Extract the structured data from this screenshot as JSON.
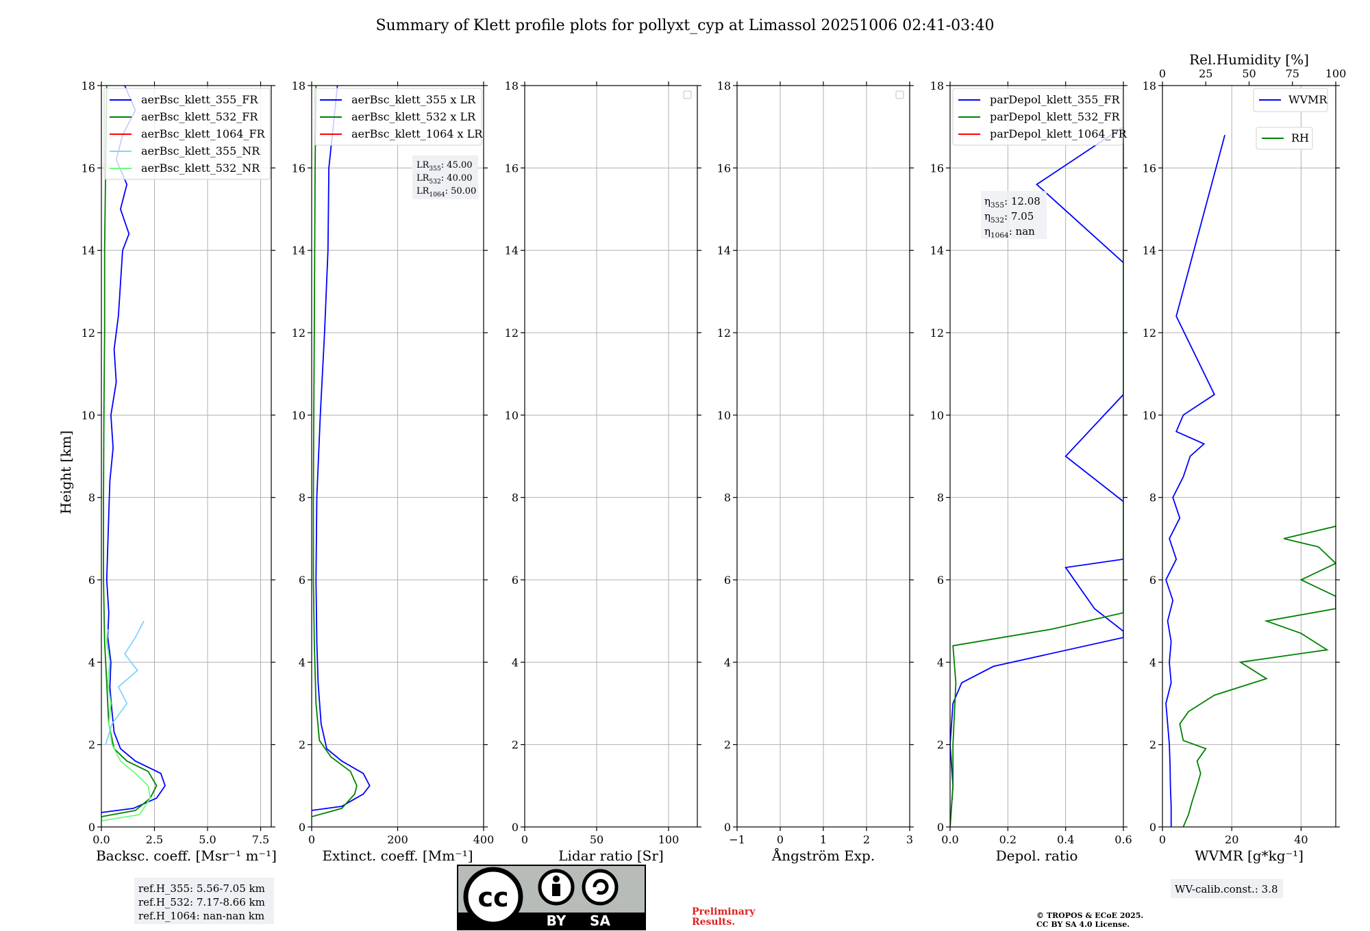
{
  "figure": {
    "title": "Summary of Klett profile plots for pollyxt_cyp at Limassol 20251006 02:41-03:40",
    "y_label": "Height [km]",
    "ref_heights": [
      "ref.H_355: 5.56-7.05 km",
      "ref.H_532: 7.17-8.66 km",
      "ref.H_1064: nan-nan km"
    ],
    "license_badge": {
      "by": "BY",
      "sa": "SA",
      "cc": "cc"
    },
    "preliminary": [
      "Preliminary",
      "Results."
    ],
    "copyright": [
      "© TROPOS & ECoE 2025.",
      "CC BY SA 4.0 License."
    ],
    "wv_calib": "WV-calib.const.: 3.8",
    "colors": {
      "blue": "#0000ff",
      "green": "#008000",
      "red": "#ff0000",
      "lightblue": "#7fd4ff",
      "lightgreen": "#6dfb7a",
      "grid": "#b0b0b0",
      "boxbg": "#eef0f4"
    }
  },
  "chart_data": [
    {
      "type": "line",
      "id": "backscatter",
      "xlabel": "Backsc. coeff. [Msr⁻¹ m⁻¹]",
      "xlim": [
        0,
        8
      ],
      "xticks": [
        "0.0",
        "2.5",
        "5.0",
        "7.5"
      ],
      "xtick_values": [
        0,
        2.5,
        5.0,
        7.5
      ],
      "ylim": [
        0,
        18
      ],
      "yticks": [
        "0",
        "2",
        "4",
        "6",
        "8",
        "10",
        "12",
        "14",
        "16",
        "18"
      ],
      "legend": [
        "aerBsc_klett_355_FR",
        "aerBsc_klett_532_FR",
        "aerBsc_klett_1064_FR",
        "aerBsc_klett_355_NR",
        "aerBsc_klett_532_NR"
      ],
      "series": [
        {
          "name": "aerBsc_klett_355_FR",
          "color": "blue",
          "points": [
            [
              0.0,
              0.35
            ],
            [
              1.5,
              0.45
            ],
            [
              2.6,
              0.7
            ],
            [
              3.0,
              1.0
            ],
            [
              2.8,
              1.3
            ],
            [
              1.6,
              1.6
            ],
            [
              0.9,
              1.9
            ],
            [
              0.6,
              2.3
            ],
            [
              0.5,
              2.8
            ],
            [
              0.4,
              3.4
            ],
            [
              0.45,
              4.0
            ],
            [
              0.3,
              4.6
            ],
            [
              0.35,
              5.2
            ],
            [
              0.25,
              6.0
            ],
            [
              0.3,
              6.8
            ],
            [
              0.35,
              7.6
            ],
            [
              0.4,
              8.4
            ],
            [
              0.55,
              9.2
            ],
            [
              0.45,
              10.0
            ],
            [
              0.7,
              10.8
            ],
            [
              0.6,
              11.6
            ],
            [
              0.8,
              12.4
            ],
            [
              0.9,
              13.2
            ],
            [
              1.0,
              14.0
            ],
            [
              1.3,
              14.4
            ],
            [
              0.9,
              15.0
            ],
            [
              1.2,
              15.6
            ],
            [
              0.7,
              16.2
            ],
            [
              1.0,
              16.8
            ],
            [
              1.6,
              17.4
            ],
            [
              1.1,
              18.0
            ]
          ]
        },
        {
          "name": "aerBsc_klett_532_FR",
          "color": "green",
          "points": [
            [
              0.0,
              0.25
            ],
            [
              1.6,
              0.4
            ],
            [
              2.3,
              0.7
            ],
            [
              2.6,
              1.0
            ],
            [
              2.2,
              1.35
            ],
            [
              1.2,
              1.6
            ],
            [
              0.6,
              1.9
            ],
            [
              0.35,
              2.5
            ],
            [
              0.25,
              3.5
            ],
            [
              0.15,
              4.5
            ],
            [
              0.1,
              6.0
            ],
            [
              0.1,
              8.0
            ],
            [
              0.12,
              10.0
            ],
            [
              0.15,
              12.0
            ],
            [
              0.15,
              14.0
            ],
            [
              0.2,
              16.0
            ],
            [
              0.25,
              18.0
            ]
          ]
        },
        {
          "name": "aerBsc_klett_355_NR",
          "color": "lightblue",
          "points": [
            [
              0.2,
              2.0
            ],
            [
              0.5,
              2.5
            ],
            [
              1.2,
              3.0
            ],
            [
              0.8,
              3.4
            ],
            [
              1.7,
              3.8
            ],
            [
              1.1,
              4.2
            ],
            [
              1.6,
              4.6
            ],
            [
              2.0,
              5.0
            ]
          ]
        },
        {
          "name": "aerBsc_klett_532_NR",
          "color": "lightgreen",
          "points": [
            [
              0.0,
              0.15
            ],
            [
              1.8,
              0.3
            ],
            [
              2.3,
              0.7
            ],
            [
              2.2,
              1.0
            ],
            [
              1.6,
              1.3
            ],
            [
              0.9,
              1.6
            ],
            [
              0.5,
              2.0
            ],
            [
              0.35,
              2.5
            ],
            [
              0.45,
              3.0
            ],
            [
              0.3,
              3.5
            ],
            [
              0.4,
              4.0
            ],
            [
              0.25,
              4.5
            ],
            [
              0.3,
              4.8
            ]
          ]
        }
      ]
    },
    {
      "type": "line",
      "id": "extinction",
      "xlabel": "Extinct. coeff. [Mm⁻¹]",
      "xlim": [
        0,
        400
      ],
      "xticks": [
        "0",
        "200",
        "400"
      ],
      "xtick_values": [
        0,
        200,
        400
      ],
      "ylim": [
        0,
        18
      ],
      "yticks": [
        "0",
        "2",
        "4",
        "6",
        "8",
        "10",
        "12",
        "14",
        "16",
        "18"
      ],
      "legend": [
        "aerBsc_klett_355 x LR",
        "aerBsc_klett_532 x LR",
        "aerBsc_klett_1064 x LR"
      ],
      "lr_box": [
        "LR355: 45.00",
        "LR532: 40.00",
        "LR1064: 50.00"
      ],
      "series": [
        {
          "name": "aerBsc_klett_355 x LR",
          "color": "blue",
          "points": [
            [
              0,
              0.4
            ],
            [
              70,
              0.5
            ],
            [
              120,
              0.8
            ],
            [
              135,
              1.0
            ],
            [
              120,
              1.3
            ],
            [
              70,
              1.6
            ],
            [
              35,
              1.9
            ],
            [
              22,
              2.5
            ],
            [
              15,
              3.5
            ],
            [
              12,
              4.5
            ],
            [
              10,
              6.0
            ],
            [
              12,
              8.0
            ],
            [
              20,
              10.0
            ],
            [
              30,
              12.0
            ],
            [
              38,
              14.0
            ],
            [
              40,
              16.0
            ],
            [
              50,
              17.0
            ],
            [
              60,
              18.0
            ]
          ]
        },
        {
          "name": "aerBsc_klett_532 x LR",
          "color": "green",
          "points": [
            [
              0,
              0.25
            ],
            [
              70,
              0.45
            ],
            [
              100,
              0.8
            ],
            [
              105,
              1.0
            ],
            [
              90,
              1.35
            ],
            [
              45,
              1.7
            ],
            [
              18,
              2.1
            ],
            [
              10,
              3.0
            ],
            [
              6,
              4.5
            ],
            [
              4,
              6.0
            ],
            [
              4,
              8.0
            ],
            [
              5,
              10.0
            ],
            [
              6,
              12.0
            ],
            [
              7,
              14.0
            ],
            [
              8,
              16.0
            ],
            [
              10,
              18.0
            ]
          ]
        }
      ]
    },
    {
      "type": "line",
      "id": "lidar_ratio",
      "xlabel": "Lidar ratio [Sr]",
      "xlim": [
        0,
        120
      ],
      "xticks": [
        "0",
        "50",
        "100"
      ],
      "xtick_values": [
        0,
        50,
        100
      ],
      "ylim": [
        0,
        18
      ],
      "yticks": [
        "0",
        "2",
        "4",
        "6",
        "8",
        "10",
        "12",
        "14",
        "16",
        "18"
      ],
      "series": []
    },
    {
      "type": "line",
      "id": "angstrom",
      "xlabel": "Ångström Exp.",
      "xlim": [
        -1,
        3
      ],
      "xticks": [
        "−1",
        "0",
        "1",
        "2",
        "3"
      ],
      "xtick_values": [
        -1,
        0,
        1,
        2,
        3
      ],
      "ylim": [
        0,
        18
      ],
      "yticks": [
        "0",
        "2",
        "4",
        "6",
        "8",
        "10",
        "12",
        "14",
        "16",
        "18"
      ],
      "series": []
    },
    {
      "type": "line",
      "id": "depol",
      "xlabel": "Depol. ratio",
      "xlim": [
        0,
        0.6
      ],
      "xticks": [
        "0.0",
        "0.2",
        "0.4",
        "0.6"
      ],
      "xtick_values": [
        0,
        0.2,
        0.4,
        0.6
      ],
      "ylim": [
        0,
        18
      ],
      "yticks": [
        "0",
        "2",
        "4",
        "6",
        "8",
        "10",
        "12",
        "14",
        "16",
        "18"
      ],
      "legend": [
        "parDepol_klett_355_FR",
        "parDepol_klett_532_FR",
        "parDepol_klett_1064_FR"
      ],
      "eta_box": [
        "η355: 12.08",
        "η532: 7.05",
        "η1064: nan"
      ],
      "series": [
        {
          "name": "parDepol_klett_355_FR",
          "color": "blue",
          "points": [
            [
              0.0,
              0.0
            ],
            [
              0.01,
              1.0
            ],
            [
              0.0,
              2.0
            ],
            [
              0.01,
              3.0
            ],
            [
              0.04,
              3.5
            ],
            [
              0.15,
              3.9
            ],
            [
              0.6,
              4.6
            ],
            [
              0.6,
              4.75
            ],
            [
              0.5,
              5.3
            ],
            [
              0.4,
              6.3
            ],
            [
              0.6,
              6.5
            ],
            [
              0.6,
              6.8
            ],
            [
              0.6,
              7.9
            ],
            [
              0.4,
              9.0
            ],
            [
              0.6,
              10.5
            ],
            [
              0.6,
              11.5
            ],
            [
              0.6,
              12.1
            ],
            [
              0.6,
              12.7
            ],
            [
              0.6,
              13.7
            ],
            [
              0.3,
              15.6
            ],
            [
              0.6,
              17.0
            ],
            [
              0.6,
              17.7
            ]
          ]
        },
        {
          "name": "parDepol_klett_532_FR",
          "color": "green",
          "points": [
            [
              0.0,
              0.0
            ],
            [
              0.01,
              1.0
            ],
            [
              0.01,
              2.0
            ],
            [
              0.02,
              3.5
            ],
            [
              0.01,
              4.4
            ],
            [
              0.35,
              4.8
            ],
            [
              0.6,
              5.2
            ],
            [
              0.6,
              6.1
            ],
            [
              0.6,
              7.3
            ],
            [
              0.6,
              8.0
            ],
            [
              0.6,
              9.7
            ],
            [
              0.6,
              10.0
            ],
            [
              0.6,
              13.2
            ],
            [
              0.6,
              14.4
            ],
            [
              0.6,
              16.2
            ],
            [
              0.6,
              16.5
            ],
            [
              0.6,
              17.3
            ],
            [
              0.6,
              17.8
            ]
          ]
        }
      ]
    },
    {
      "type": "line",
      "id": "wvmr",
      "xlabel": "WVMR [g*kg⁻¹]",
      "xlim": [
        0,
        50
      ],
      "xticks": [
        "0",
        "20",
        "40"
      ],
      "xtick_values": [
        0,
        20,
        40
      ],
      "ylim": [
        0,
        18
      ],
      "yticks": [
        "0",
        "2",
        "4",
        "6",
        "8",
        "10",
        "12",
        "14",
        "16",
        "18"
      ],
      "top_axis": {
        "label": "Rel.Humidity [%]",
        "ticks": [
          "0",
          "25",
          "50",
          "75",
          "100"
        ],
        "values": [
          0,
          25,
          50,
          75,
          100
        ],
        "lim": [
          0,
          100
        ]
      },
      "legend": [
        "WVMR",
        "RH"
      ],
      "series": [
        {
          "name": "WVMR",
          "color": "blue",
          "points": [
            [
              2.5,
              0.0
            ],
            [
              2.5,
              0.5
            ],
            [
              2.3,
              1.0
            ],
            [
              2.2,
              1.5
            ],
            [
              2.0,
              2.0
            ],
            [
              1.5,
              2.5
            ],
            [
              1.0,
              3.0
            ],
            [
              2.5,
              3.5
            ],
            [
              2.0,
              4.0
            ],
            [
              2.5,
              4.5
            ],
            [
              1.5,
              5.0
            ],
            [
              3.0,
              5.5
            ],
            [
              1.0,
              6.0
            ],
            [
              4.0,
              6.5
            ],
            [
              2.0,
              7.0
            ],
            [
              5.0,
              7.5
            ],
            [
              3.0,
              8.0
            ],
            [
              6.0,
              8.5
            ],
            [
              8.0,
              9.0
            ],
            [
              12.0,
              9.3
            ],
            [
              4.0,
              9.6
            ],
            [
              6.0,
              10.0
            ],
            [
              15.0,
              10.5
            ],
            [
              4.0,
              12.4
            ],
            [
              18.0,
              16.8
            ]
          ]
        },
        {
          "name": "RH",
          "color": "green",
          "axis": "top",
          "points": [
            [
              12,
              0.0
            ],
            [
              15,
              0.3
            ],
            [
              17,
              0.6
            ],
            [
              20,
              1.0
            ],
            [
              22,
              1.3
            ],
            [
              20,
              1.6
            ],
            [
              25,
              1.9
            ],
            [
              12,
              2.1
            ],
            [
              10,
              2.5
            ],
            [
              15,
              2.8
            ],
            [
              30,
              3.2
            ],
            [
              60,
              3.6
            ],
            [
              45,
              4.0
            ],
            [
              95,
              4.3
            ],
            [
              80,
              4.7
            ],
            [
              60,
              5.0
            ],
            [
              100,
              5.3
            ],
            [
              100,
              5.6
            ],
            [
              80,
              6.0
            ],
            [
              100,
              6.4
            ],
            [
              90,
              6.8
            ],
            [
              70,
              7.0
            ],
            [
              100,
              7.3
            ]
          ]
        }
      ]
    }
  ]
}
